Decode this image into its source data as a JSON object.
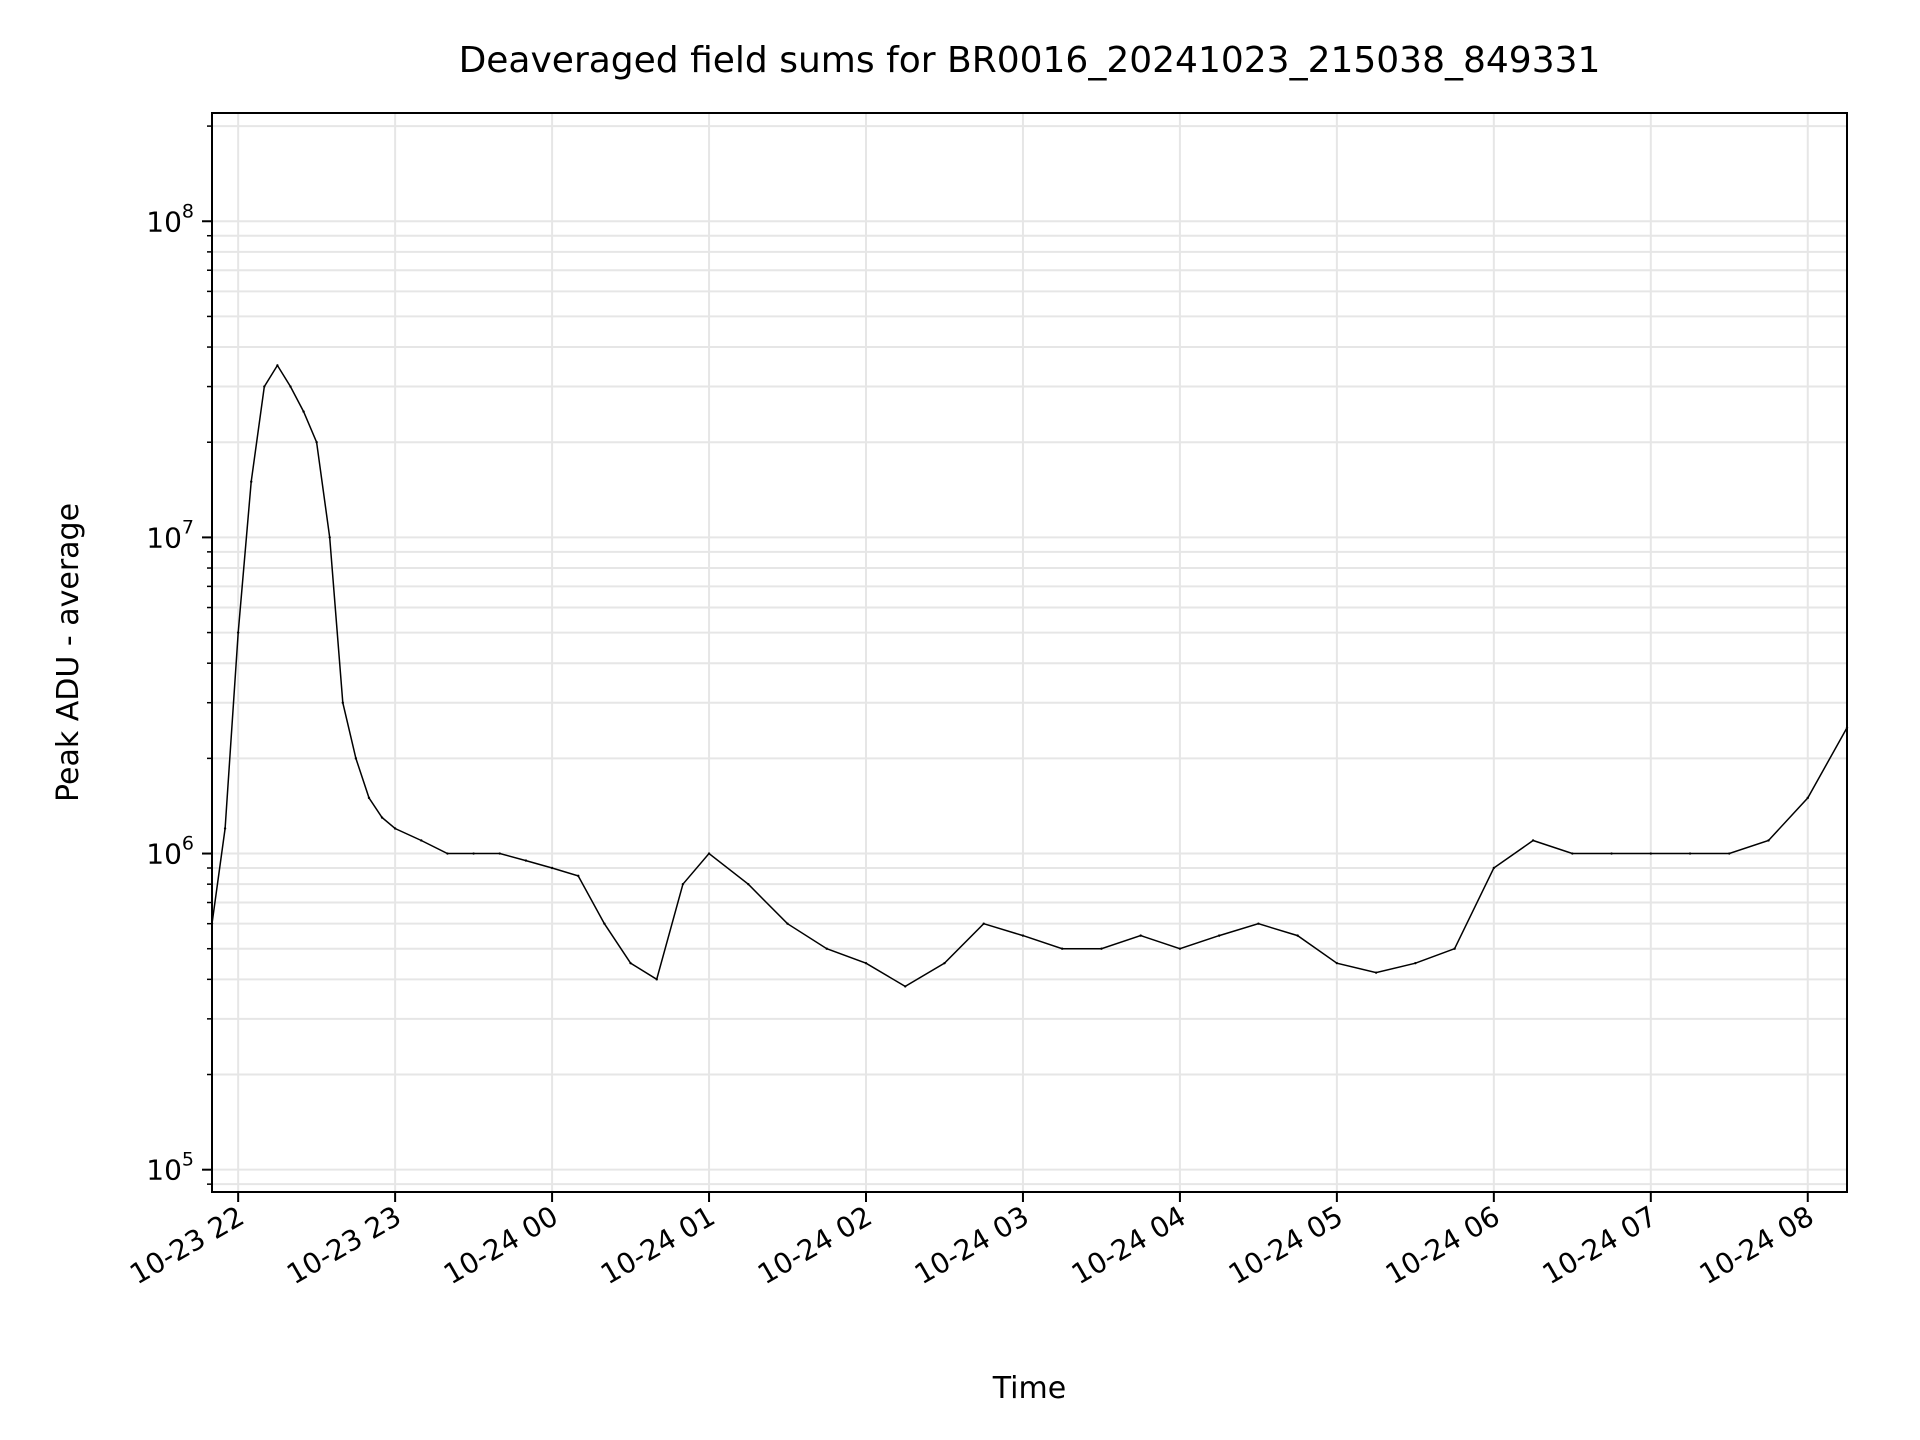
{
  "chart_data": {
    "type": "line",
    "title": "Deaveraged field sums for BR0016_20241023_215038_849331",
    "xlabel": "Time",
    "ylabel": "Peak ADU - average",
    "yscale": "log",
    "ylim": [
      85000,
      220000000
    ],
    "xlim": [
      "2024-10-23 21:50",
      "2024-10-24 08:15"
    ],
    "x_ticks": [
      {
        "label": "10-23 22",
        "value": "2024-10-23 22:00"
      },
      {
        "label": "10-23 23",
        "value": "2024-10-23 23:00"
      },
      {
        "label": "10-24 00",
        "value": "2024-10-24 00:00"
      },
      {
        "label": "10-24 01",
        "value": "2024-10-24 01:00"
      },
      {
        "label": "10-24 02",
        "value": "2024-10-24 02:00"
      },
      {
        "label": "10-24 03",
        "value": "2024-10-24 03:00"
      },
      {
        "label": "10-24 04",
        "value": "2024-10-24 04:00"
      },
      {
        "label": "10-24 05",
        "value": "2024-10-24 05:00"
      },
      {
        "label": "10-24 06",
        "value": "2024-10-24 06:00"
      },
      {
        "label": "10-24 07",
        "value": "2024-10-24 07:00"
      },
      {
        "label": "10-24 08",
        "value": "2024-10-24 08:00"
      }
    ],
    "y_ticks": [
      {
        "base": "10",
        "exp": "5",
        "value": 100000
      },
      {
        "base": "10",
        "exp": "6",
        "value": 1000000
      },
      {
        "base": "10",
        "exp": "7",
        "value": 10000000
      },
      {
        "base": "10",
        "exp": "8",
        "value": 100000000
      }
    ],
    "grid": true,
    "series_color": "#000000",
    "grid_color": "#e6e6e6",
    "series": [
      {
        "x": [
          "2024-10-23 21:50",
          "2024-10-23 21:55",
          "2024-10-23 22:00",
          "2024-10-23 22:05",
          "2024-10-23 22:10",
          "2024-10-23 22:15",
          "2024-10-23 22:20",
          "2024-10-23 22:25",
          "2024-10-23 22:30",
          "2024-10-23 22:35",
          "2024-10-23 22:40",
          "2024-10-23 22:45",
          "2024-10-23 22:50",
          "2024-10-23 22:55",
          "2024-10-23 23:00",
          "2024-10-23 23:10",
          "2024-10-23 23:20",
          "2024-10-23 23:30",
          "2024-10-23 23:40",
          "2024-10-23 23:50",
          "2024-10-24 00:00",
          "2024-10-24 00:10",
          "2024-10-24 00:20",
          "2024-10-24 00:30",
          "2024-10-24 00:40",
          "2024-10-24 00:50",
          "2024-10-24 01:00",
          "2024-10-24 01:15",
          "2024-10-24 01:30",
          "2024-10-24 01:45",
          "2024-10-24 02:00",
          "2024-10-24 02:15",
          "2024-10-24 02:30",
          "2024-10-24 02:45",
          "2024-10-24 03:00",
          "2024-10-24 03:15",
          "2024-10-24 03:30",
          "2024-10-24 03:45",
          "2024-10-24 04:00",
          "2024-10-24 04:15",
          "2024-10-24 04:30",
          "2024-10-24 04:45",
          "2024-10-24 05:00",
          "2024-10-24 05:15",
          "2024-10-24 05:30",
          "2024-10-24 05:45",
          "2024-10-24 06:00",
          "2024-10-24 06:15",
          "2024-10-24 06:30",
          "2024-10-24 06:45",
          "2024-10-24 07:00",
          "2024-10-24 07:15",
          "2024-10-24 07:30",
          "2024-10-24 07:45",
          "2024-10-24 08:00",
          "2024-10-24 08:15"
        ],
        "y": [
          600000,
          1200000,
          5000000,
          15000000,
          30000000,
          35000000,
          30000000,
          25000000,
          20000000,
          10000000,
          3000000,
          2000000,
          1500000,
          1300000,
          1200000,
          1100000,
          1000000,
          1000000,
          1000000,
          950000,
          900000,
          850000,
          600000,
          450000,
          400000,
          800000,
          1000000,
          800000,
          600000,
          500000,
          450000,
          380000,
          450000,
          600000,
          550000,
          500000,
          500000,
          550000,
          500000,
          550000,
          600000,
          550000,
          450000,
          420000,
          450000,
          500000,
          900000,
          1100000,
          1000000,
          1000000,
          1000000,
          1000000,
          1000000,
          1100000,
          1500000,
          2500000
        ]
      }
    ]
  }
}
